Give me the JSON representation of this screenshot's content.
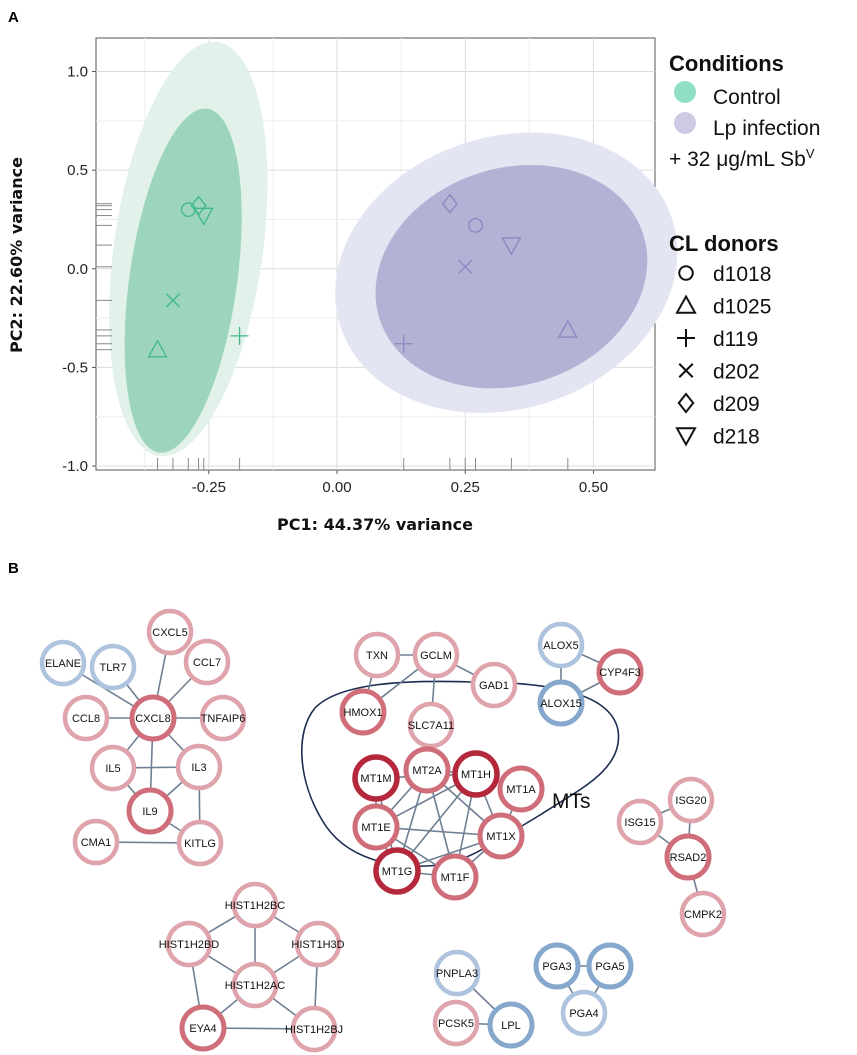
{
  "panel_a": {
    "label": "A",
    "chart_data": {
      "type": "scatter",
      "xlabel": "PC1: 44.37% variance",
      "ylabel": "PC2: 22.60% variance",
      "xlim": [
        -0.47,
        0.62
      ],
      "ylim": [
        -1.02,
        1.17
      ],
      "x_ticks": [
        -0.25,
        0.0,
        0.25,
        0.5
      ],
      "x_tick_labels": [
        "-0.25",
        "0.00",
        "0.25",
        "0.50"
      ],
      "y_ticks": [
        1.0,
        0.5,
        0.0,
        -0.5,
        -1.0
      ],
      "y_tick_labels": [
        "1.0",
        "0.5",
        "0.0",
        "-0.5",
        "-1.0"
      ],
      "grid": true,
      "legend_position": "right",
      "series": [
        {
          "name": "Control",
          "color": "#3fb88a",
          "points": [
            {
              "donor": "d1018",
              "x": -0.29,
              "y": 0.3
            },
            {
              "donor": "d1025",
              "x": -0.35,
              "y": -0.41
            },
            {
              "donor": "d119",
              "x": -0.19,
              "y": -0.34
            },
            {
              "donor": "d202",
              "x": -0.32,
              "y": -0.16
            },
            {
              "donor": "d209",
              "x": -0.27,
              "y": 0.32
            },
            {
              "donor": "d218",
              "x": -0.26,
              "y": 0.27
            }
          ],
          "ellipses": [
            {
              "level": "outer",
              "cx": -0.29,
              "cy": 0.1,
              "rx": 0.145,
              "ry": 1.06,
              "rotate": 8,
              "color": "#e2f2ea"
            },
            {
              "level": "inner",
              "cx": -0.3,
              "cy": -0.06,
              "rx": 0.105,
              "ry": 0.88,
              "rotate": 8,
              "color": "#9cd5bb"
            }
          ]
        },
        {
          "name": "Lp infection\n+ 32 μg/mL SbV",
          "color": "#8a87c2",
          "points": [
            {
              "donor": "d1018",
              "x": 0.27,
              "y": 0.22
            },
            {
              "donor": "d1025",
              "x": 0.45,
              "y": -0.31
            },
            {
              "donor": "d119",
              "x": 0.13,
              "y": -0.38
            },
            {
              "donor": "d202",
              "x": 0.25,
              "y": 0.01
            },
            {
              "donor": "d209",
              "x": 0.22,
              "y": 0.33
            },
            {
              "donor": "d218",
              "x": 0.34,
              "y": 0.12
            }
          ],
          "ellipses": [
            {
              "level": "outer",
              "cx": 0.33,
              "cy": -0.02,
              "rx": 0.34,
              "ry": 0.69,
              "rotate": -18,
              "color": "#e4e5f3"
            },
            {
              "level": "inner",
              "cx": 0.34,
              "cy": -0.04,
              "rx": 0.27,
              "ry": 0.55,
              "rotate": -18,
              "color": "#b2b2d4"
            }
          ]
        }
      ],
      "x_rug": [
        -0.35,
        -0.32,
        -0.29,
        -0.27,
        -0.26,
        -0.19,
        0.13,
        0.22,
        0.25,
        0.27,
        0.34,
        0.45
      ],
      "y_rug": [
        0.33,
        0.32,
        0.3,
        0.27,
        0.22,
        0.12,
        0.01,
        -0.16,
        -0.31,
        -0.34,
        -0.38,
        -0.41
      ]
    },
    "legend": {
      "conditions_title": "Conditions",
      "control_label": "Control",
      "lp_line1": "Lp infection",
      "lp_line2": "+ 32 μg/mL Sb",
      "lp_sup": "V",
      "donors_title": "CL donors",
      "donors": [
        {
          "symbol": "circle",
          "label": "d1018"
        },
        {
          "symbol": "triangle-up",
          "label": "d1025"
        },
        {
          "symbol": "plus",
          "label": "d119"
        },
        {
          "symbol": "x",
          "label": "d202"
        },
        {
          "symbol": "diamond",
          "label": "d209"
        },
        {
          "symbol": "triangle-down",
          "label": "d218"
        }
      ]
    }
  },
  "panel_b": {
    "label": "B",
    "cluster_label": "MTs",
    "colors": {
      "up_strong": "#b5283b",
      "up_mid": "#cf6e7a",
      "up_light": "#dfa3ab",
      "down_mid": "#86a8cc",
      "down_light": "#aec4de",
      "edge": "#6f7f93",
      "mt_outline": "#1b2d4f"
    },
    "nodes": [
      {
        "id": "TLR7",
        "label": "TLR7",
        "tone": "down_light"
      },
      {
        "id": "CXCL5",
        "label": "CXCL5",
        "tone": "up_light"
      },
      {
        "id": "ELANE",
        "label": "ELANE",
        "tone": "down_light"
      },
      {
        "id": "CCL7",
        "label": "CCL7",
        "tone": "up_light"
      },
      {
        "id": "CCL8",
        "label": "CCL8",
        "tone": "up_light"
      },
      {
        "id": "CXCL8",
        "label": "CXCL8",
        "tone": "up_mid"
      },
      {
        "id": "TNFAIP6",
        "label": "TNFAIP6",
        "tone": "up_light"
      },
      {
        "id": "IL5",
        "label": "IL5",
        "tone": "up_light"
      },
      {
        "id": "IL3",
        "label": "IL3",
        "tone": "up_light"
      },
      {
        "id": "IL9",
        "label": "IL9",
        "tone": "up_mid"
      },
      {
        "id": "CMA1",
        "label": "CMA1",
        "tone": "up_light"
      },
      {
        "id": "KITLG",
        "label": "KITLG",
        "tone": "up_light"
      },
      {
        "id": "TXN",
        "label": "TXN",
        "tone": "up_light"
      },
      {
        "id": "GCLM",
        "label": "GCLM",
        "tone": "up_light"
      },
      {
        "id": "GAD1",
        "label": "GAD1",
        "tone": "up_light"
      },
      {
        "id": "HMOX1",
        "label": "HMOX1",
        "tone": "up_mid"
      },
      {
        "id": "SLC7A11",
        "label": "SLC7A11",
        "tone": "up_light"
      },
      {
        "id": "ALOX5",
        "label": "ALOX5",
        "tone": "down_light"
      },
      {
        "id": "CYP4F3",
        "label": "CYP4F3",
        "tone": "up_mid"
      },
      {
        "id": "ALOX15",
        "label": "ALOX15",
        "tone": "down_mid"
      },
      {
        "id": "MT1M",
        "label": "MT1M",
        "tone": "up_strong"
      },
      {
        "id": "MT2A",
        "label": "MT2A",
        "tone": "up_mid"
      },
      {
        "id": "MT1H",
        "label": "MT1H",
        "tone": "up_strong"
      },
      {
        "id": "MT1A",
        "label": "MT1A",
        "tone": "up_mid"
      },
      {
        "id": "MT1E",
        "label": "MT1E",
        "tone": "up_mid"
      },
      {
        "id": "MT1X",
        "label": "MT1X",
        "tone": "up_mid"
      },
      {
        "id": "MT1G",
        "label": "MT1G",
        "tone": "up_strong"
      },
      {
        "id": "MT1F",
        "label": "MT1F",
        "tone": "up_mid"
      },
      {
        "id": "ISG20",
        "label": "ISG20",
        "tone": "up_light"
      },
      {
        "id": "ISG15",
        "label": "ISG15",
        "tone": "up_light"
      },
      {
        "id": "RSAD2",
        "label": "RSAD2",
        "tone": "up_mid"
      },
      {
        "id": "CMPK2",
        "label": "CMPK2",
        "tone": "up_light"
      },
      {
        "id": "HIST1H2BC",
        "label": "HIST1H2BC",
        "tone": "up_light"
      },
      {
        "id": "HIST1H2BD",
        "label": "HIST1H2BD",
        "tone": "up_light"
      },
      {
        "id": "HIST1H3D",
        "label": "HIST1H3D",
        "tone": "up_light"
      },
      {
        "id": "HIST1H2AC",
        "label": "HIST1H2AC",
        "tone": "up_light"
      },
      {
        "id": "EYA4",
        "label": "EYA4",
        "tone": "up_mid"
      },
      {
        "id": "HIST1H2BJ",
        "label": "HIST1H2BJ",
        "tone": "up_light"
      },
      {
        "id": "PNPLA3",
        "label": "PNPLA3",
        "tone": "down_light"
      },
      {
        "id": "PCSK5",
        "label": "PCSK5",
        "tone": "up_light"
      },
      {
        "id": "LPL",
        "label": "LPL",
        "tone": "down_mid"
      },
      {
        "id": "PGA3",
        "label": "PGA3",
        "tone": "down_mid"
      },
      {
        "id": "PGA5",
        "label": "PGA5",
        "tone": "down_mid"
      },
      {
        "id": "PGA4",
        "label": "PGA4",
        "tone": "down_light"
      }
    ],
    "edges": [
      [
        "ELANE",
        "CXCL8"
      ],
      [
        "TLR7",
        "CXCL8"
      ],
      [
        "CXCL5",
        "CXCL8"
      ],
      [
        "CCL7",
        "CXCL8"
      ],
      [
        "CCL8",
        "CXCL8"
      ],
      [
        "TNFAIP6",
        "CXCL8"
      ],
      [
        "CXCL8",
        "IL5"
      ],
      [
        "CXCL8",
        "IL3"
      ],
      [
        "CXCL8",
        "IL9"
      ],
      [
        "IL5",
        "IL3"
      ],
      [
        "IL5",
        "IL9"
      ],
      [
        "IL3",
        "IL9"
      ],
      [
        "IL3",
        "KITLG"
      ],
      [
        "IL9",
        "KITLG"
      ],
      [
        "CMA1",
        "KITLG"
      ],
      [
        "TXN",
        "GCLM"
      ],
      [
        "GCLM",
        "GAD1"
      ],
      [
        "GCLM",
        "SLC7A11"
      ],
      [
        "GCLM",
        "HMOX1"
      ],
      [
        "TXN",
        "HMOX1"
      ],
      [
        "ALOX5",
        "ALOX15"
      ],
      [
        "ALOX5",
        "CYP4F3"
      ],
      [
        "CYP4F3",
        "ALOX15"
      ],
      [
        "MT1M",
        "MT1E"
      ],
      [
        "MT1M",
        "MT1G"
      ],
      [
        "MT2A",
        "MT1H"
      ],
      [
        "MT2A",
        "MT1E"
      ],
      [
        "MT2A",
        "MT1X"
      ],
      [
        "MT2A",
        "MT1G"
      ],
      [
        "MT2A",
        "MT1F"
      ],
      [
        "MT1H",
        "MT1A"
      ],
      [
        "MT1H",
        "MT1E"
      ],
      [
        "MT1H",
        "MT1X"
      ],
      [
        "MT1H",
        "MT1G"
      ],
      [
        "MT1H",
        "MT1F"
      ],
      [
        "MT1E",
        "MT1X"
      ],
      [
        "MT1E",
        "MT1G"
      ],
      [
        "MT1E",
        "MT1F"
      ],
      [
        "MT1X",
        "MT1G"
      ],
      [
        "MT1X",
        "MT1F"
      ],
      [
        "MT1G",
        "MT1F"
      ],
      [
        "MT1A",
        "MT1X"
      ],
      [
        "MT1M",
        "MT1H"
      ],
      [
        "ISG20",
        "ISG15"
      ],
      [
        "ISG20",
        "RSAD2"
      ],
      [
        "ISG15",
        "RSAD2"
      ],
      [
        "RSAD2",
        "CMPK2"
      ],
      [
        "HIST1H2BC",
        "HIST1H2BD"
      ],
      [
        "HIST1H2BC",
        "HIST1H3D"
      ],
      [
        "HIST1H2BC",
        "HIST1H2AC"
      ],
      [
        "HIST1H2BD",
        "HIST1H2AC"
      ],
      [
        "HIST1H3D",
        "HIST1H2AC"
      ],
      [
        "HIST1H2BD",
        "EYA4"
      ],
      [
        "HIST1H3D",
        "HIST1H2BJ"
      ],
      [
        "HIST1H2AC",
        "EYA4"
      ],
      [
        "HIST1H2AC",
        "HIST1H2BJ"
      ],
      [
        "EYA4",
        "HIST1H2BJ"
      ],
      [
        "PNPLA3",
        "LPL"
      ],
      [
        "PCSK5",
        "LPL"
      ],
      [
        "PGA3",
        "PGA5"
      ],
      [
        "PGA3",
        "PGA4"
      ],
      [
        "PGA5",
        "PGA4"
      ]
    ]
  }
}
